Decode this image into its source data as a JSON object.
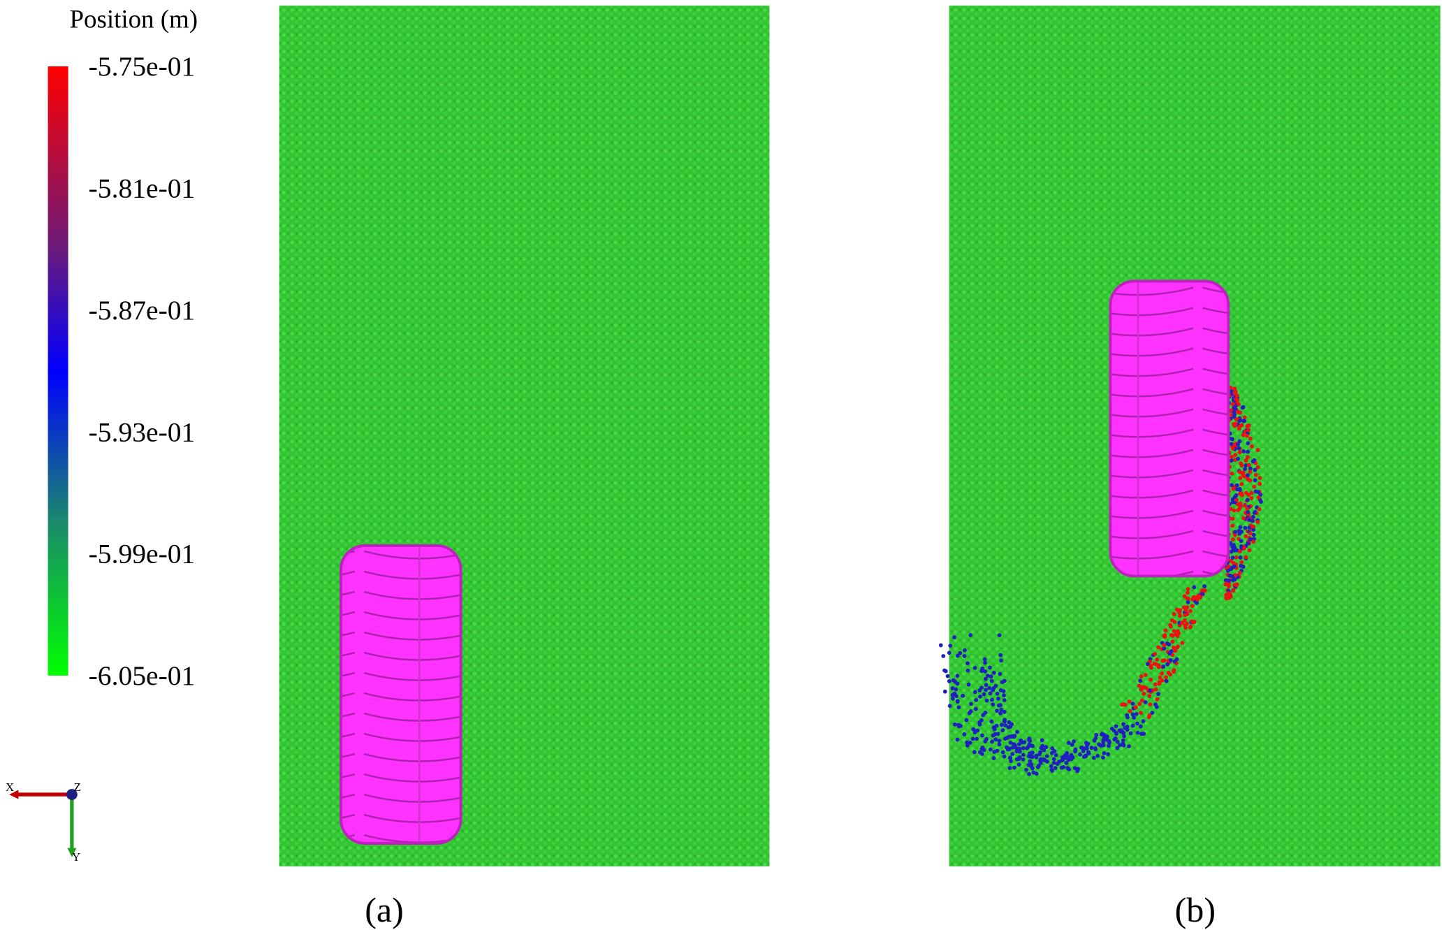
{
  "legend": {
    "title": "Position (m)",
    "ticks": [
      "-5.75e-01",
      "-5.81e-01",
      "-5.87e-01",
      "-5.93e-01",
      "-5.99e-01",
      "-6.05e-01"
    ]
  },
  "axes": {
    "x": "X",
    "z": "Z",
    "y": "Y"
  },
  "panels": [
    {
      "label": "(a)"
    },
    {
      "label": "(b)"
    }
  ]
}
